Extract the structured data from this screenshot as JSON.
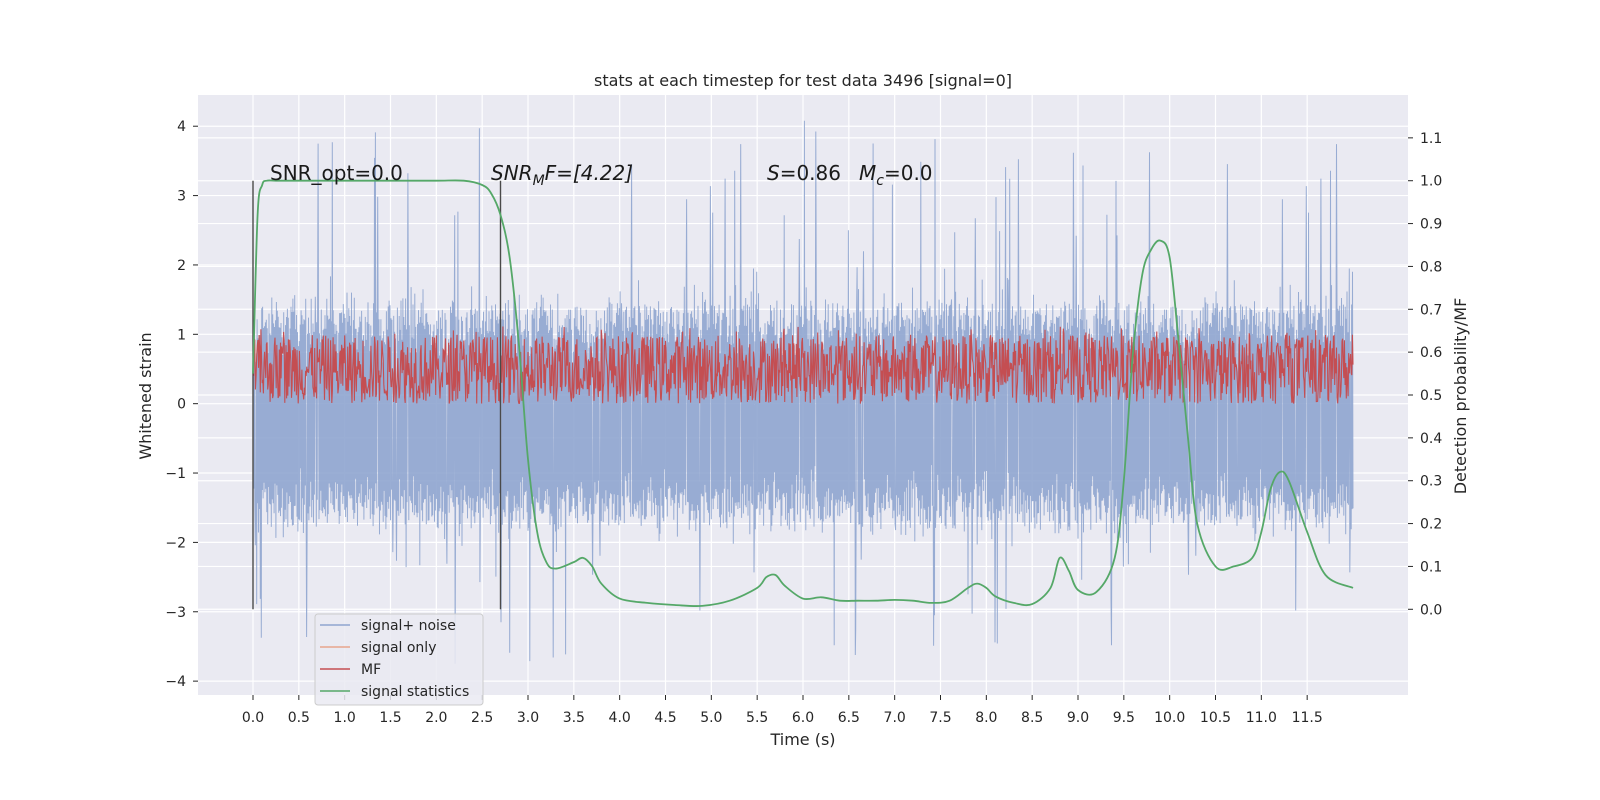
{
  "chart_data": {
    "type": "line",
    "title": "stats at each timestep for test data 3496 [signal=0]",
    "xlabel": "Time (s)",
    "ylabel_left": "Whitened strain",
    "ylabel_right": "Detection probability/MF",
    "xlim": [
      -0.6,
      12.6
    ],
    "ylim_left": [
      -4.2,
      4.45
    ],
    "ylim_right": [
      -0.2,
      1.2
    ],
    "x_ticks": [
      "0.0",
      "0.5",
      "1.0",
      "1.5",
      "2.0",
      "2.5",
      "3.0",
      "3.5",
      "4.0",
      "4.5",
      "5.0",
      "5.5",
      "6.0",
      "6.5",
      "7.0",
      "7.5",
      "8.0",
      "8.5",
      "9.0",
      "9.5",
      "10.0",
      "10.5",
      "11.0",
      "11.5"
    ],
    "y_ticks_left": [
      "4",
      "3",
      "2",
      "1",
      "0",
      "−1",
      "−2",
      "−3",
      "−4"
    ],
    "y_ticks_right": [
      "1.1",
      "1.0",
      "0.9",
      "0.8",
      "0.7",
      "0.6",
      "0.5",
      "0.4",
      "0.3",
      "0.2",
      "0.1",
      "0.0"
    ],
    "grid": true,
    "legend_position": "lower-left",
    "annotations": [
      {
        "id": "snr_opt",
        "text": "SNR_opt=0.0"
      },
      {
        "id": "snr_mf",
        "base": "SNR",
        "sub": "M",
        "rest": "F=[4.22]"
      },
      {
        "id": "stats",
        "s_label": "S",
        "s_value": "=0.86",
        "m_label": "M",
        "m_sub": "c",
        "m_value": "=0.0"
      }
    ],
    "vlines_x": [
      0.0,
      2.7
    ],
    "series": [
      {
        "name": "signal+ noise",
        "color": "#8fa5cf",
        "axis": "left",
        "style": "dense noise, band approx -2.3 to 2.1 with peaks to 4.1 and -3.8",
        "x_range": [
          0.0,
          12.0
        ],
        "envelope": {
          "p95_low": -1.7,
          "p95_high": 1.4,
          "max_high": 4.1,
          "min_low": -3.8
        }
      },
      {
        "name": "signal only",
        "color": "#e8a58c",
        "axis": "left",
        "values": []
      },
      {
        "name": "MF",
        "color": "#c44e52",
        "axis": "right",
        "x_range": [
          0.0,
          12.0
        ],
        "envelope": {
          "low": 0.48,
          "high": 0.64,
          "max_high": 0.66
        }
      },
      {
        "name": "signal statistics",
        "color": "#55a868",
        "axis": "right",
        "x": [
          0.0,
          0.05,
          0.1,
          0.15,
          0.25,
          0.5,
          1.0,
          1.5,
          2.0,
          2.3,
          2.5,
          2.6,
          2.7,
          2.8,
          2.9,
          3.0,
          3.1,
          3.2,
          3.3,
          3.5,
          3.6,
          3.7,
          3.8,
          4.0,
          4.3,
          4.6,
          4.9,
          5.2,
          5.5,
          5.6,
          5.7,
          5.8,
          6.0,
          6.2,
          6.4,
          6.6,
          6.8,
          7.0,
          7.2,
          7.4,
          7.6,
          7.8,
          7.9,
          8.0,
          8.1,
          8.3,
          8.5,
          8.7,
          8.8,
          8.9,
          9.0,
          9.2,
          9.4,
          9.5,
          9.6,
          9.7,
          9.8,
          9.9,
          10.0,
          10.1,
          10.2,
          10.3,
          10.5,
          10.7,
          10.9,
          11.0,
          11.1,
          11.2,
          11.3,
          11.5,
          11.7,
          12.0
        ],
        "y": [
          0.55,
          0.92,
          0.99,
          1.0,
          1.0,
          1.0,
          1.0,
          1.0,
          1.0,
          1.0,
          0.99,
          0.97,
          0.92,
          0.82,
          0.62,
          0.35,
          0.18,
          0.11,
          0.095,
          0.11,
          0.12,
          0.1,
          0.06,
          0.025,
          0.015,
          0.01,
          0.008,
          0.02,
          0.05,
          0.075,
          0.08,
          0.055,
          0.025,
          0.028,
          0.02,
          0.02,
          0.02,
          0.022,
          0.02,
          0.015,
          0.02,
          0.05,
          0.06,
          0.05,
          0.03,
          0.015,
          0.012,
          0.05,
          0.12,
          0.09,
          0.045,
          0.04,
          0.12,
          0.3,
          0.6,
          0.78,
          0.84,
          0.86,
          0.82,
          0.62,
          0.4,
          0.2,
          0.1,
          0.1,
          0.12,
          0.18,
          0.28,
          0.32,
          0.3,
          0.18,
          0.08,
          0.05
        ]
      }
    ]
  }
}
